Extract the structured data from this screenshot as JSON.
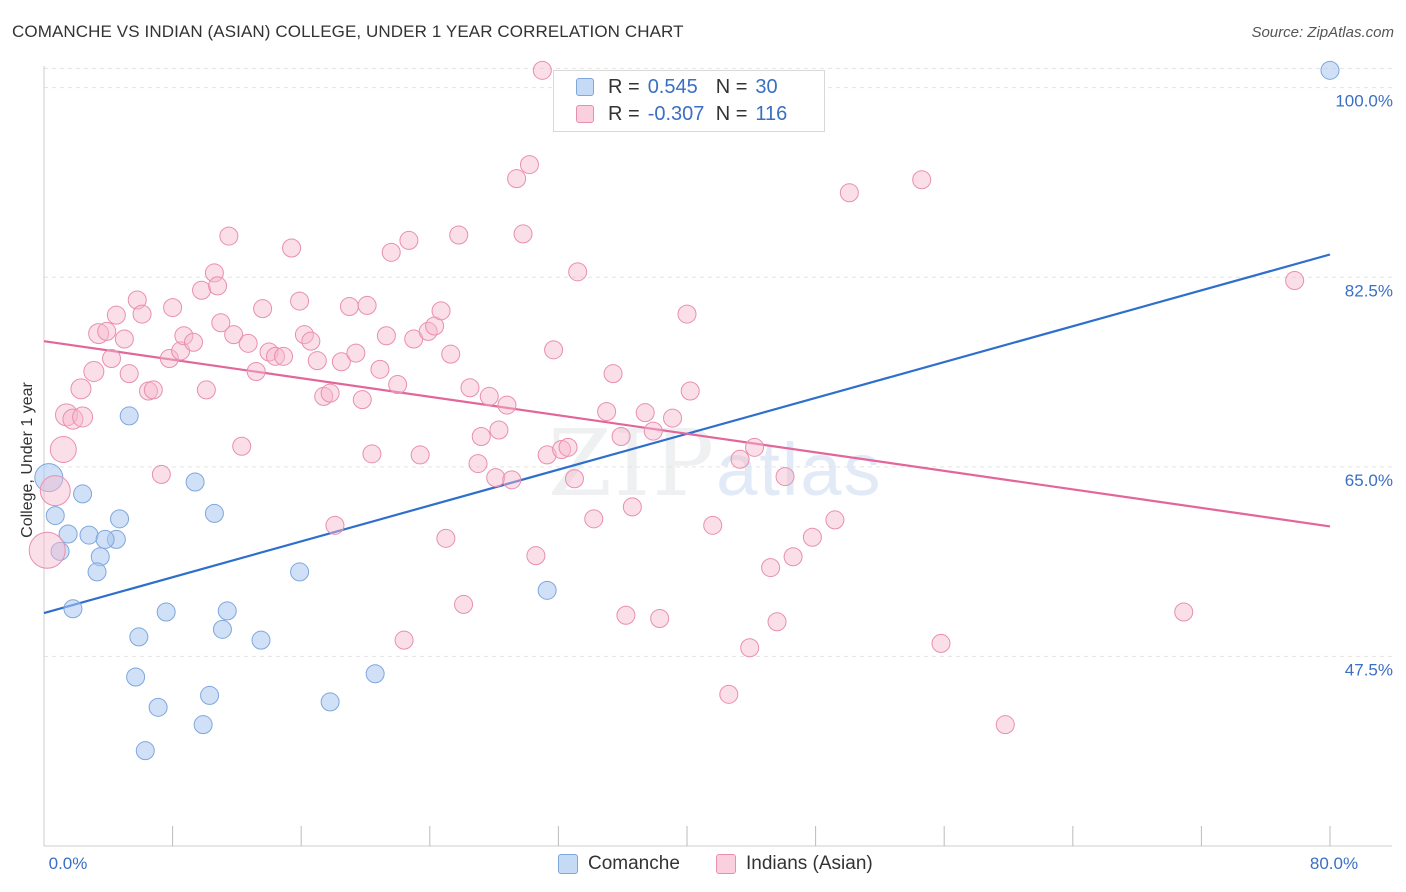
{
  "title": "COMANCHE VS INDIAN (ASIAN) COLLEGE, UNDER 1 YEAR CORRELATION CHART",
  "source": "Source: ZipAtlas.com",
  "watermark": {
    "zip": "ZIP",
    "atlas": "atlas"
  },
  "legend": {
    "rows": [
      {
        "r_label": "R =",
        "r_value": "0.545",
        "n_label": "N =",
        "n_value": "30",
        "color": "#a9c8ef",
        "border": "#7fa6dd"
      },
      {
        "r_label": "R =",
        "r_value": "-0.307",
        "n_label": "N =",
        "n_value": "116",
        "color": "#f6bcd0",
        "border": "#e98fae"
      }
    ]
  },
  "bottom_legend": [
    {
      "label": "Comanche",
      "color": "#c5daf5",
      "border": "#7fa6dd"
    },
    {
      "label": "Indians (Asian)",
      "color": "#fad0de",
      "border": "#e98fae"
    }
  ],
  "chart_data": {
    "type": "scatter",
    "title": "COMANCHE VS INDIAN (ASIAN) COLLEGE, UNDER 1 YEAR CORRELATION CHART",
    "xlabel": "",
    "ylabel": "College, Under 1 year",
    "xlim": [
      0,
      80
    ],
    "ylim": [
      30,
      102
    ],
    "x_tick_labels": [
      {
        "value": 0,
        "label": "0.0%"
      },
      {
        "value": 80,
        "label": "80.0%"
      }
    ],
    "x_minor_ticks": [
      8,
      16,
      24,
      32,
      40,
      48,
      56,
      64,
      72,
      80
    ],
    "y_ticks": [
      {
        "value": 100,
        "label": "100.0%"
      },
      {
        "value": 82.5,
        "label": "82.5%"
      },
      {
        "value": 65,
        "label": "65.0%"
      },
      {
        "value": 47.5,
        "label": "47.5%"
      }
    ],
    "series": [
      {
        "name": "Comanche",
        "fill": "rgba(170,200,240,0.55)",
        "stroke": "#7fa6dd",
        "trend": {
          "x": [
            0,
            80
          ],
          "y": [
            51.5,
            84.6
          ],
          "color": "#2f6fcc"
        },
        "points": [
          {
            "x": 0.3,
            "y": 64.0,
            "s": 14
          },
          {
            "x": 0.7,
            "y": 60.5,
            "s": 9
          },
          {
            "x": 1.5,
            "y": 58.8,
            "s": 9
          },
          {
            "x": 1.0,
            "y": 57.2,
            "s": 9
          },
          {
            "x": 2.4,
            "y": 62.5,
            "s": 9
          },
          {
            "x": 2.8,
            "y": 58.7,
            "s": 9
          },
          {
            "x": 3.5,
            "y": 56.7,
            "s": 9
          },
          {
            "x": 4.5,
            "y": 58.3,
            "s": 9
          },
          {
            "x": 3.8,
            "y": 58.3,
            "s": 9
          },
          {
            "x": 4.7,
            "y": 60.2,
            "s": 9
          },
          {
            "x": 3.3,
            "y": 55.3,
            "s": 9
          },
          {
            "x": 1.8,
            "y": 51.9,
            "s": 9
          },
          {
            "x": 5.3,
            "y": 69.7,
            "s": 9
          },
          {
            "x": 9.4,
            "y": 63.6,
            "s": 9
          },
          {
            "x": 10.6,
            "y": 60.7,
            "s": 9
          },
          {
            "x": 7.6,
            "y": 51.6,
            "s": 9
          },
          {
            "x": 11.4,
            "y": 51.7,
            "s": 9
          },
          {
            "x": 5.9,
            "y": 49.3,
            "s": 9
          },
          {
            "x": 11.1,
            "y": 50.0,
            "s": 9
          },
          {
            "x": 13.5,
            "y": 49.0,
            "s": 9
          },
          {
            "x": 5.7,
            "y": 45.6,
            "s": 9
          },
          {
            "x": 7.1,
            "y": 42.8,
            "s": 9
          },
          {
            "x": 10.3,
            "y": 43.9,
            "s": 9
          },
          {
            "x": 9.9,
            "y": 41.2,
            "s": 9
          },
          {
            "x": 6.3,
            "y": 38.8,
            "s": 9
          },
          {
            "x": 15.9,
            "y": 55.3,
            "s": 9
          },
          {
            "x": 17.8,
            "y": 43.3,
            "s": 9
          },
          {
            "x": 20.6,
            "y": 45.9,
            "s": 9
          },
          {
            "x": 31.3,
            "y": 53.6,
            "s": 9
          },
          {
            "x": 80.0,
            "y": 101.6,
            "s": 9
          }
        ]
      },
      {
        "name": "Indians (Asian)",
        "fill": "rgba(246,185,205,0.45)",
        "stroke": "#e98fae",
        "trend": {
          "x": [
            0,
            80
          ],
          "y": [
            76.6,
            59.5
          ],
          "color": "#e2669a"
        },
        "points": [
          {
            "x": 0.2,
            "y": 57.3,
            "s": 18
          },
          {
            "x": 0.7,
            "y": 62.8,
            "s": 15
          },
          {
            "x": 1.2,
            "y": 66.6,
            "s": 13
          },
          {
            "x": 1.4,
            "y": 69.8,
            "s": 11
          },
          {
            "x": 1.8,
            "y": 69.4,
            "s": 10
          },
          {
            "x": 2.4,
            "y": 69.6,
            "s": 10
          },
          {
            "x": 2.3,
            "y": 72.2,
            "s": 10
          },
          {
            "x": 3.1,
            "y": 73.8,
            "s": 10
          },
          {
            "x": 3.4,
            "y": 77.3,
            "s": 10
          },
          {
            "x": 3.9,
            "y": 77.5,
            "s": 9
          },
          {
            "x": 4.2,
            "y": 75.0,
            "s": 9
          },
          {
            "x": 4.5,
            "y": 79.0,
            "s": 9
          },
          {
            "x": 5.0,
            "y": 76.8,
            "s": 9
          },
          {
            "x": 5.3,
            "y": 73.6,
            "s": 9
          },
          {
            "x": 5.8,
            "y": 80.4,
            "s": 9
          },
          {
            "x": 6.1,
            "y": 79.1,
            "s": 9
          },
          {
            "x": 6.5,
            "y": 72.0,
            "s": 9
          },
          {
            "x": 6.8,
            "y": 72.1,
            "s": 9
          },
          {
            "x": 7.3,
            "y": 64.3,
            "s": 9
          },
          {
            "x": 7.8,
            "y": 75.0,
            "s": 9
          },
          {
            "x": 8.0,
            "y": 79.7,
            "s": 9
          },
          {
            "x": 8.5,
            "y": 75.7,
            "s": 9
          },
          {
            "x": 8.7,
            "y": 77.1,
            "s": 9
          },
          {
            "x": 9.3,
            "y": 76.5,
            "s": 9
          },
          {
            "x": 9.8,
            "y": 81.3,
            "s": 9
          },
          {
            "x": 10.1,
            "y": 72.1,
            "s": 9
          },
          {
            "x": 10.6,
            "y": 82.9,
            "s": 9
          },
          {
            "x": 10.8,
            "y": 81.7,
            "s": 9
          },
          {
            "x": 11.0,
            "y": 78.3,
            "s": 9
          },
          {
            "x": 11.5,
            "y": 86.3,
            "s": 9
          },
          {
            "x": 11.8,
            "y": 77.2,
            "s": 9
          },
          {
            "x": 12.3,
            "y": 66.9,
            "s": 9
          },
          {
            "x": 12.7,
            "y": 76.4,
            "s": 9
          },
          {
            "x": 13.2,
            "y": 73.8,
            "s": 9
          },
          {
            "x": 13.6,
            "y": 79.6,
            "s": 9
          },
          {
            "x": 14.0,
            "y": 75.6,
            "s": 9
          },
          {
            "x": 14.4,
            "y": 75.2,
            "s": 9
          },
          {
            "x": 14.9,
            "y": 75.2,
            "s": 9
          },
          {
            "x": 15.4,
            "y": 85.2,
            "s": 9
          },
          {
            "x": 15.9,
            "y": 80.3,
            "s": 9
          },
          {
            "x": 16.2,
            "y": 77.2,
            "s": 9
          },
          {
            "x": 16.6,
            "y": 76.6,
            "s": 9
          },
          {
            "x": 17.0,
            "y": 74.8,
            "s": 9
          },
          {
            "x": 17.4,
            "y": 71.5,
            "s": 9
          },
          {
            "x": 17.8,
            "y": 71.8,
            "s": 9
          },
          {
            "x": 18.1,
            "y": 59.6,
            "s": 9
          },
          {
            "x": 18.5,
            "y": 74.7,
            "s": 9
          },
          {
            "x": 19.0,
            "y": 79.8,
            "s": 9
          },
          {
            "x": 19.4,
            "y": 75.5,
            "s": 9
          },
          {
            "x": 19.8,
            "y": 71.2,
            "s": 9
          },
          {
            "x": 20.1,
            "y": 79.9,
            "s": 9
          },
          {
            "x": 20.4,
            "y": 66.2,
            "s": 9
          },
          {
            "x": 20.9,
            "y": 74.0,
            "s": 9
          },
          {
            "x": 21.3,
            "y": 77.1,
            "s": 9
          },
          {
            "x": 21.6,
            "y": 84.8,
            "s": 9
          },
          {
            "x": 22.0,
            "y": 72.6,
            "s": 9
          },
          {
            "x": 22.4,
            "y": 49.0,
            "s": 9
          },
          {
            "x": 22.7,
            "y": 85.9,
            "s": 9
          },
          {
            "x": 23.0,
            "y": 76.8,
            "s": 9
          },
          {
            "x": 23.4,
            "y": 66.1,
            "s": 9
          },
          {
            "x": 23.9,
            "y": 77.5,
            "s": 9
          },
          {
            "x": 24.3,
            "y": 78.0,
            "s": 9
          },
          {
            "x": 24.7,
            "y": 79.4,
            "s": 9
          },
          {
            "x": 25.0,
            "y": 58.4,
            "s": 9
          },
          {
            "x": 25.3,
            "y": 75.4,
            "s": 9
          },
          {
            "x": 25.8,
            "y": 86.4,
            "s": 9
          },
          {
            "x": 26.1,
            "y": 52.3,
            "s": 9
          },
          {
            "x": 26.5,
            "y": 72.3,
            "s": 9
          },
          {
            "x": 27.0,
            "y": 65.3,
            "s": 9
          },
          {
            "x": 27.2,
            "y": 67.8,
            "s": 9
          },
          {
            "x": 27.7,
            "y": 71.5,
            "s": 9
          },
          {
            "x": 28.1,
            "y": 64.0,
            "s": 9
          },
          {
            "x": 28.3,
            "y": 68.4,
            "s": 9
          },
          {
            "x": 28.8,
            "y": 70.7,
            "s": 9
          },
          {
            "x": 29.1,
            "y": 63.8,
            "s": 9
          },
          {
            "x": 29.4,
            "y": 91.6,
            "s": 9
          },
          {
            "x": 29.8,
            "y": 86.5,
            "s": 9
          },
          {
            "x": 30.2,
            "y": 92.9,
            "s": 9
          },
          {
            "x": 30.6,
            "y": 56.8,
            "s": 9
          },
          {
            "x": 31.0,
            "y": 101.6,
            "s": 9
          },
          {
            "x": 31.3,
            "y": 66.1,
            "s": 9
          },
          {
            "x": 31.7,
            "y": 75.8,
            "s": 9
          },
          {
            "x": 32.2,
            "y": 66.6,
            "s": 9
          },
          {
            "x": 32.6,
            "y": 66.8,
            "s": 9
          },
          {
            "x": 33.0,
            "y": 63.9,
            "s": 9
          },
          {
            "x": 33.2,
            "y": 83.0,
            "s": 9
          },
          {
            "x": 34.2,
            "y": 60.2,
            "s": 9
          },
          {
            "x": 35.0,
            "y": 70.1,
            "s": 9
          },
          {
            "x": 35.4,
            "y": 73.6,
            "s": 9
          },
          {
            "x": 35.9,
            "y": 67.8,
            "s": 9
          },
          {
            "x": 36.2,
            "y": 51.3,
            "s": 9
          },
          {
            "x": 36.6,
            "y": 61.3,
            "s": 9
          },
          {
            "x": 37.4,
            "y": 70.0,
            "s": 9
          },
          {
            "x": 37.9,
            "y": 68.3,
            "s": 9
          },
          {
            "x": 38.3,
            "y": 51.0,
            "s": 9
          },
          {
            "x": 39.1,
            "y": 69.5,
            "s": 9
          },
          {
            "x": 40.0,
            "y": 79.1,
            "s": 9
          },
          {
            "x": 40.2,
            "y": 72.0,
            "s": 9
          },
          {
            "x": 41.6,
            "y": 59.6,
            "s": 9
          },
          {
            "x": 42.6,
            "y": 44.0,
            "s": 9
          },
          {
            "x": 43.3,
            "y": 65.7,
            "s": 9
          },
          {
            "x": 43.9,
            "y": 48.3,
            "s": 9
          },
          {
            "x": 44.2,
            "y": 66.8,
            "s": 9
          },
          {
            "x": 45.2,
            "y": 55.7,
            "s": 9
          },
          {
            "x": 45.6,
            "y": 50.7,
            "s": 9
          },
          {
            "x": 46.1,
            "y": 64.1,
            "s": 9
          },
          {
            "x": 46.6,
            "y": 56.7,
            "s": 9
          },
          {
            "x": 47.8,
            "y": 58.5,
            "s": 9
          },
          {
            "x": 49.2,
            "y": 60.1,
            "s": 9
          },
          {
            "x": 50.1,
            "y": 90.3,
            "s": 9
          },
          {
            "x": 54.6,
            "y": 91.5,
            "s": 9
          },
          {
            "x": 55.8,
            "y": 48.7,
            "s": 9
          },
          {
            "x": 59.8,
            "y": 41.2,
            "s": 9
          },
          {
            "x": 70.9,
            "y": 51.6,
            "s": 9
          },
          {
            "x": 77.8,
            "y": 82.2,
            "s": 9
          }
        ]
      }
    ]
  }
}
